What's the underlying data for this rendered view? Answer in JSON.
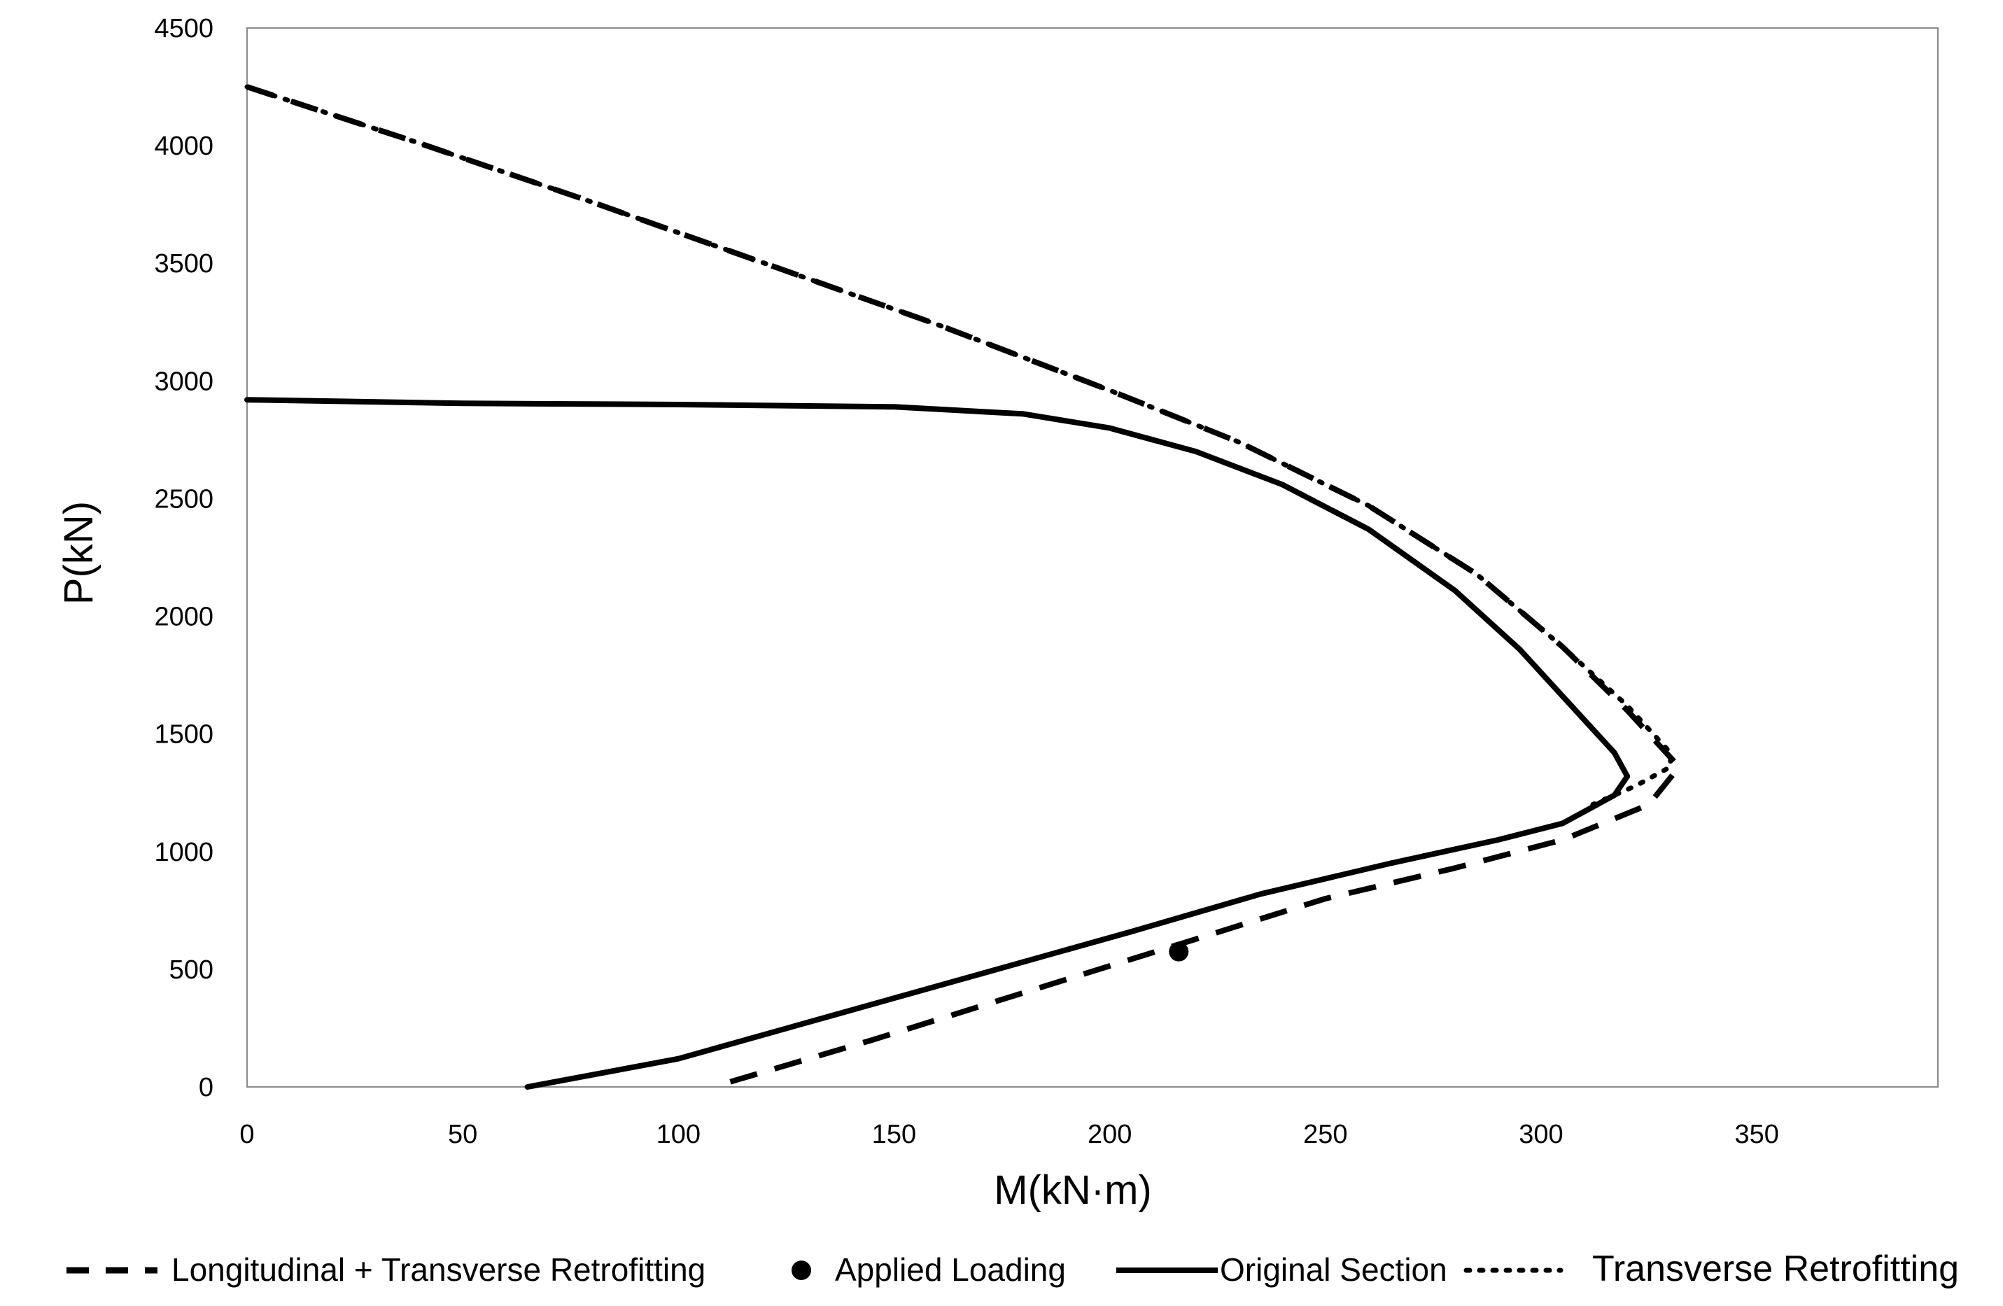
{
  "chart_data": {
    "type": "line",
    "title": "",
    "xlabel": "M(kN·m)",
    "ylabel": "P(kN)",
    "xlim": [
      0,
      392
    ],
    "ylim": [
      0,
      4500
    ],
    "xticks": [
      0,
      50,
      100,
      150,
      200,
      250,
      300,
      350
    ],
    "yticks": [
      0,
      500,
      1000,
      1500,
      2000,
      2500,
      3000,
      3500,
      4000,
      4500
    ],
    "grid": false,
    "legend_position": "bottom",
    "series": [
      {
        "name": "Longitudinal + Transverse Retrofitting",
        "style": "dashed",
        "color": "#000000",
        "points": [
          [
            0,
            4250
          ],
          [
            40,
            4010
          ],
          [
            80,
            3760
          ],
          [
            120,
            3500
          ],
          [
            160,
            3240
          ],
          [
            200,
            2960
          ],
          [
            230,
            2740
          ],
          [
            260,
            2470
          ],
          [
            285,
            2180
          ],
          [
            305,
            1870
          ],
          [
            320,
            1600
          ],
          [
            330,
            1400
          ],
          [
            332,
            1360
          ],
          [
            325,
            1200
          ],
          [
            305,
            1050
          ],
          [
            280,
            930
          ],
          [
            250,
            800
          ],
          [
            215,
            600
          ],
          [
            180,
            400
          ],
          [
            145,
            200
          ],
          [
            108,
            0
          ]
        ]
      },
      {
        "name": "Applied Loading",
        "style": "marker",
        "color": "#000000",
        "points": [
          [
            216,
            575
          ]
        ]
      },
      {
        "name": "Original Section",
        "style": "solid",
        "color": "#000000",
        "points": [
          [
            0,
            2920
          ],
          [
            50,
            2905
          ],
          [
            100,
            2900
          ],
          [
            150,
            2890
          ],
          [
            180,
            2860
          ],
          [
            200,
            2800
          ],
          [
            220,
            2700
          ],
          [
            240,
            2560
          ],
          [
            260,
            2370
          ],
          [
            280,
            2110
          ],
          [
            295,
            1860
          ],
          [
            308,
            1600
          ],
          [
            317,
            1420
          ],
          [
            320,
            1320
          ],
          [
            317,
            1240
          ],
          [
            305,
            1120
          ],
          [
            290,
            1050
          ],
          [
            265,
            950
          ],
          [
            235,
            820
          ],
          [
            205,
            660
          ],
          [
            170,
            480
          ],
          [
            135,
            300
          ],
          [
            100,
            120
          ],
          [
            65,
            0
          ]
        ]
      },
      {
        "name": "Transverse Retrofitting",
        "style": "dotted",
        "color": "#000000",
        "points": [
          [
            0,
            4250
          ],
          [
            40,
            4010
          ],
          [
            80,
            3760
          ],
          [
            120,
            3500
          ],
          [
            160,
            3240
          ],
          [
            200,
            2960
          ],
          [
            230,
            2740
          ],
          [
            260,
            2470
          ],
          [
            285,
            2180
          ],
          [
            305,
            1870
          ],
          [
            320,
            1620
          ],
          [
            330,
            1420
          ],
          [
            330,
            1360
          ],
          [
            322,
            1280
          ],
          [
            312,
            1200
          ]
        ]
      }
    ]
  }
}
